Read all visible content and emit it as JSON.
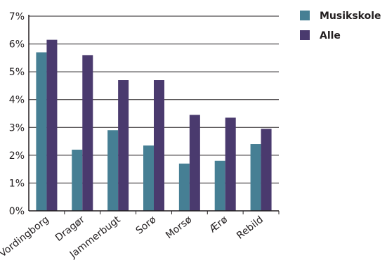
{
  "chart_data": {
    "type": "bar",
    "categories": [
      "Vordingborg",
      "Dragør",
      "Jammerbugt",
      "Sorø",
      "Morsø",
      "Ærø",
      "Rebild"
    ],
    "series": [
      {
        "name": "Musikskole",
        "color": "#467f94",
        "values": [
          5.7,
          2.2,
          2.9,
          2.35,
          1.7,
          1.8,
          2.4
        ]
      },
      {
        "name": "Alle",
        "color": "#4a3a6e",
        "values": [
          6.15,
          5.6,
          4.7,
          4.7,
          3.45,
          3.35,
          2.95
        ]
      }
    ],
    "y_ticks": [
      "0%",
      "1%",
      "2%",
      "3%",
      "4%",
      "5%",
      "6%",
      "7%"
    ],
    "ylim": [
      0,
      7
    ],
    "grid": true,
    "legend_position": "top-right"
  }
}
